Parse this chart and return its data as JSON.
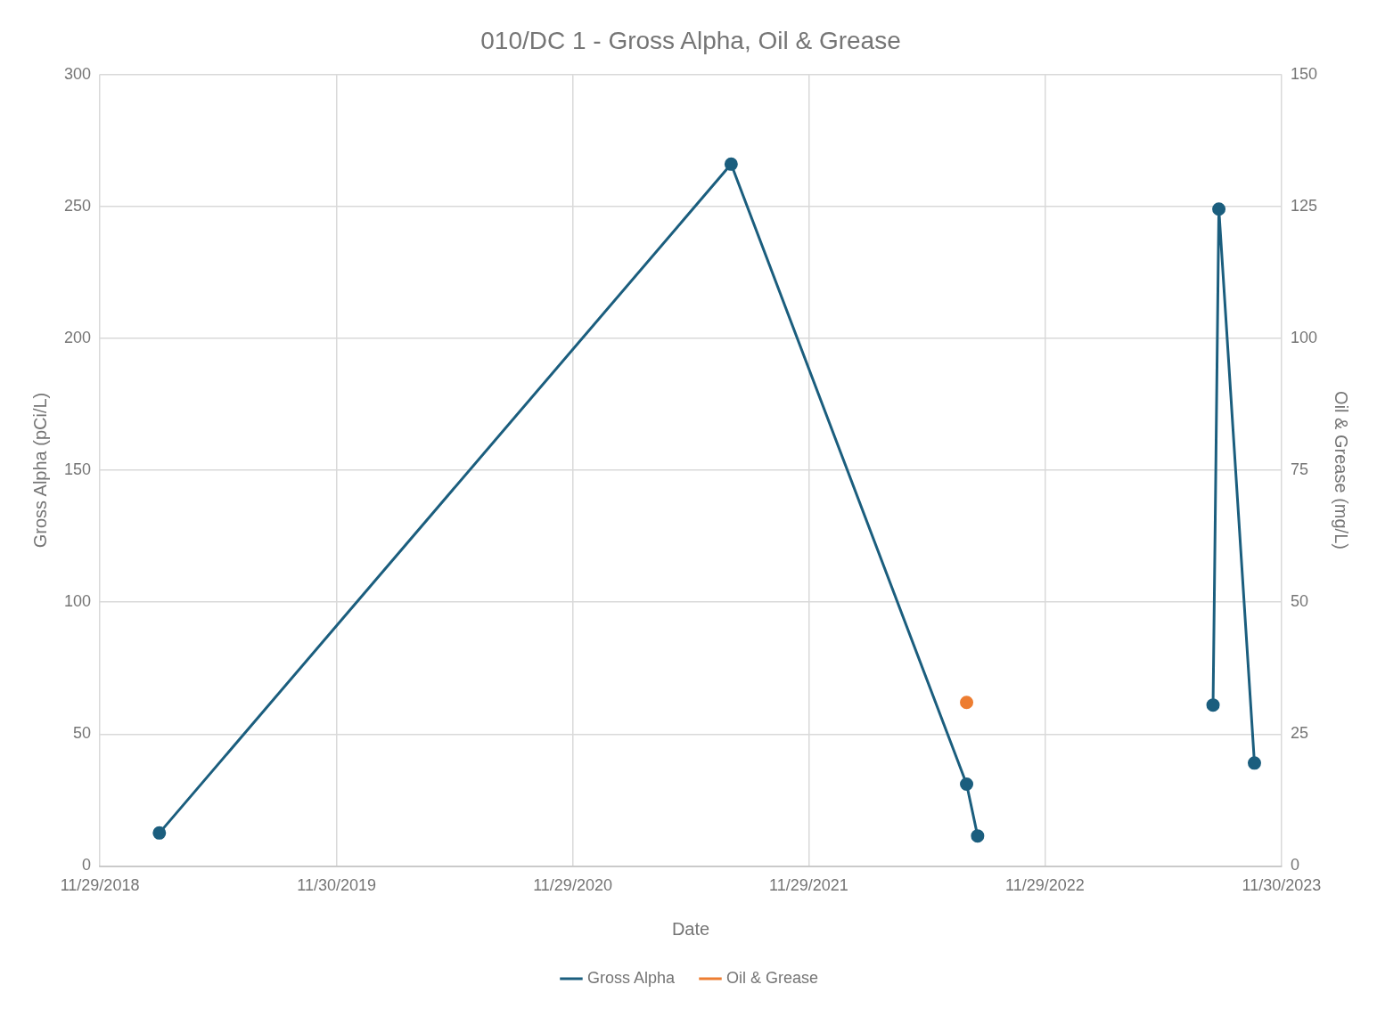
{
  "chart_data": {
    "type": "line",
    "title": "010/DC 1 - Gross Alpha, Oil & Grease",
    "xlabel": "Date",
    "ylabel": "Gross Alpha (pCi/L)",
    "y2label": "Oil & Grease (mg/L)",
    "series": [
      {
        "name": "Gross Alpha",
        "color": "#1b5e7e",
        "x": [
          "2019-03-01",
          "2021-08-01",
          "2022-07-31",
          "2022-08-17",
          "2023-01-15",
          "2023-08-16",
          "2023-08-25",
          "2023-10-19"
        ],
        "values": [
          12.5,
          266,
          31,
          11.4,
          null,
          61,
          249,
          39
        ]
      },
      {
        "name": "Oil & Grease",
        "color": "#ed7d31",
        "axis": "y2",
        "x": [
          "2022-07-31"
        ],
        "values": [
          31
        ]
      }
    ],
    "xlim": [
      "2018-11-29",
      "2023-11-30"
    ],
    "xticks": [
      {
        "value": "2018-11-29",
        "label": "11/29/2018"
      },
      {
        "value": "2019-11-30",
        "label": "11/30/2019"
      },
      {
        "value": "2020-11-29",
        "label": "11/29/2020"
      },
      {
        "value": "2021-11-29",
        "label": "11/29/2021"
      },
      {
        "value": "2022-11-29",
        "label": "11/29/2022"
      },
      {
        "value": "2023-11-30",
        "label": "11/30/2023"
      }
    ],
    "ylim": [
      0,
      300
    ],
    "yticks": [
      0,
      50,
      100,
      150,
      200,
      250,
      300
    ],
    "y2lim": [
      0,
      150
    ],
    "y2ticks": [
      0,
      25,
      50,
      75,
      100,
      125,
      150
    ],
    "grid": true,
    "legend": "bottom",
    "marker": "circle",
    "line_style": "solid"
  }
}
